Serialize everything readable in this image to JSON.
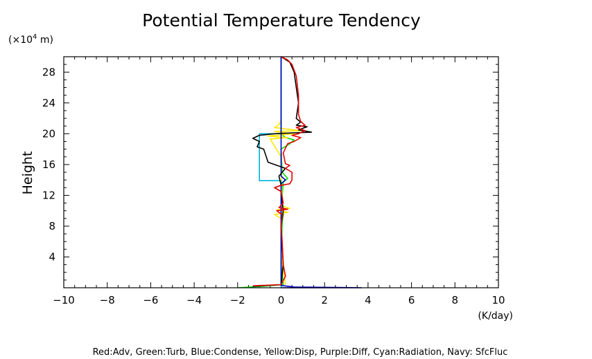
{
  "chart_data": {
    "type": "line",
    "title": "Potential Temperature Tendency",
    "xlabel": "",
    "x_unit": "(K/day)",
    "ylabel": "Height",
    "y_unit_prefix": "(×10",
    "y_unit_exp": "4",
    "y_unit_suffix": " m)",
    "xlim": [
      -10,
      10
    ],
    "ylim": [
      0,
      30
    ],
    "x_ticks": [
      -10,
      -8,
      -6,
      -4,
      -2,
      0,
      2,
      4,
      6,
      8,
      10
    ],
    "x_tick_labels": [
      "−10",
      "−8",
      "−6",
      "−4",
      "−2",
      "0",
      "2",
      "4",
      "6",
      "8",
      "10"
    ],
    "y_ticks": [
      4,
      8,
      12,
      16,
      20,
      24,
      28
    ],
    "y_tick_labels": [
      "4",
      "8",
      "12",
      "16",
      "20",
      "24",
      "28"
    ],
    "grid": false,
    "legend_text": "Red:Adv, Green:Turb, Blue:Condense, Yellow:Disp, Purple:Diff, Cyan:Radiation, Navy: SfcFluc",
    "series": [
      {
        "color": "#00dc00",
        "points": [
          [
            -2.0,
            0.0
          ],
          [
            -0.8,
            0.2
          ],
          [
            0.1,
            0.4
          ],
          [
            0.0,
            3
          ],
          [
            0.05,
            8.5
          ],
          [
            0.1,
            9.5
          ],
          [
            0.05,
            12
          ],
          [
            0.1,
            13.7
          ],
          [
            0.3,
            14.2
          ],
          [
            0.05,
            15
          ],
          [
            0.0,
            18
          ],
          [
            0.4,
            18.7
          ],
          [
            0.6,
            19.2
          ],
          [
            0.2,
            19.5
          ],
          [
            0.0,
            20
          ],
          [
            0.0,
            30
          ]
        ]
      },
      {
        "color": "#ffe600",
        "points": [
          [
            0.2,
            0.4
          ],
          [
            0.05,
            3
          ],
          [
            0.0,
            9
          ],
          [
            -0.3,
            9.5
          ],
          [
            0.3,
            9.8
          ],
          [
            -0.2,
            10.1
          ],
          [
            0.4,
            10.3
          ],
          [
            0.05,
            10.6
          ],
          [
            0.0,
            17
          ],
          [
            -0.5,
            19.3
          ],
          [
            0.3,
            19.5
          ],
          [
            -0.6,
            19.7
          ],
          [
            0.6,
            20.0
          ],
          [
            -0.3,
            20.3
          ],
          [
            0.9,
            20.4
          ],
          [
            -0.3,
            20.8
          ],
          [
            -0.1,
            21.2
          ],
          [
            0.0,
            21.8
          ],
          [
            0.0,
            30
          ]
        ]
      },
      {
        "color": "#00b4dc",
        "points": [
          [
            0.0,
            0.0
          ],
          [
            0.0,
            13.9
          ],
          [
            -1.0,
            13.9
          ],
          [
            -1.0,
            20.0
          ],
          [
            0.0,
            20.0
          ],
          [
            0.0,
            30
          ]
        ]
      },
      {
        "color": "#0000c8",
        "points": [
          [
            0.0,
            0.0
          ],
          [
            3.7,
            0.0
          ],
          [
            0.6,
            0.1
          ],
          [
            0.0,
            0.3
          ],
          [
            0.0,
            13.5
          ],
          [
            0.2,
            14.0
          ],
          [
            0.0,
            14.5
          ],
          [
            0.0,
            30
          ]
        ]
      },
      {
        "color": "#000000",
        "points": [
          [
            -1.3,
            0.2
          ],
          [
            0.0,
            0.4
          ],
          [
            0.1,
            3
          ],
          [
            0.0,
            8
          ],
          [
            0.1,
            10
          ],
          [
            0.0,
            12.5
          ],
          [
            -0.3,
            13.0
          ],
          [
            0.0,
            13.3
          ],
          [
            -0.1,
            14.5
          ],
          [
            0.2,
            15.5
          ],
          [
            -0.3,
            16.0
          ],
          [
            -0.6,
            16.3
          ],
          [
            -0.8,
            18.0
          ],
          [
            -1.1,
            18.3
          ],
          [
            -1.0,
            19.0
          ],
          [
            -1.3,
            19.4
          ],
          [
            -1.0,
            19.8
          ],
          [
            -0.3,
            20.0
          ],
          [
            0.5,
            20.1
          ],
          [
            1.4,
            20.2
          ],
          [
            0.8,
            20.5
          ],
          [
            1.2,
            20.9
          ],
          [
            0.7,
            21.1
          ],
          [
            0.9,
            21.5
          ],
          [
            0.7,
            22
          ],
          [
            0.8,
            24
          ],
          [
            0.7,
            26
          ],
          [
            0.6,
            28
          ],
          [
            0.4,
            29.3
          ],
          [
            0.0,
            30
          ]
        ]
      },
      {
        "color": "#e60000",
        "points": [
          [
            -1.3,
            0.25
          ],
          [
            0.0,
            0.4
          ],
          [
            0.2,
            1.5
          ],
          [
            0.1,
            3
          ],
          [
            0.05,
            6
          ],
          [
            0.0,
            8
          ],
          [
            0.05,
            9.5
          ],
          [
            -0.2,
            10.0
          ],
          [
            0.3,
            10.2
          ],
          [
            -0.1,
            10.4
          ],
          [
            0.1,
            11
          ],
          [
            0.0,
            12.5
          ],
          [
            -0.3,
            13.0
          ],
          [
            0.0,
            13.3
          ],
          [
            0.4,
            13.5
          ],
          [
            0.5,
            14.0
          ],
          [
            0.5,
            15.0
          ],
          [
            0.2,
            15.5
          ],
          [
            0.4,
            15.9
          ],
          [
            0.2,
            16.1
          ],
          [
            0.1,
            17.5
          ],
          [
            0.3,
            18.7
          ],
          [
            0.6,
            19.0
          ],
          [
            0.9,
            19.5
          ],
          [
            0.5,
            19.8
          ],
          [
            0.8,
            20.0
          ],
          [
            1.1,
            20.4
          ],
          [
            0.7,
            20.8
          ],
          [
            1.1,
            21.1
          ],
          [
            0.9,
            21.6
          ],
          [
            0.8,
            22.5
          ],
          [
            0.8,
            25
          ],
          [
            0.7,
            27.5
          ],
          [
            0.5,
            29.0
          ],
          [
            0.3,
            29.6
          ],
          [
            0.0,
            30
          ]
        ]
      }
    ]
  }
}
